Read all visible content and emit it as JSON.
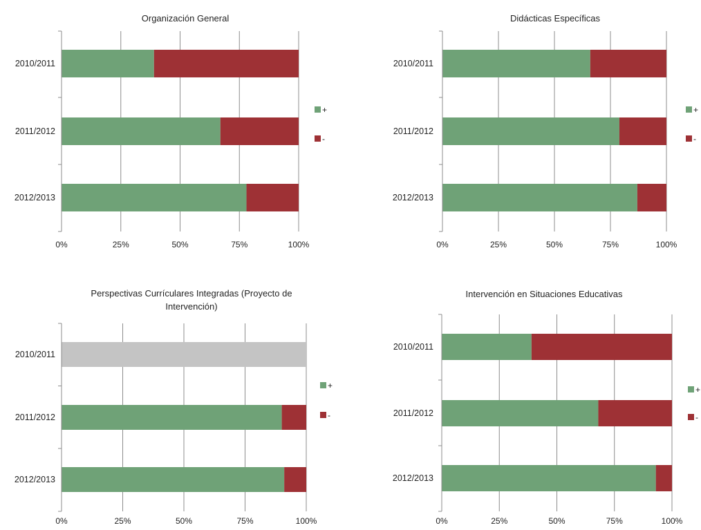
{
  "colors": {
    "plus": "#6FA277",
    "minus": "#9E3135",
    "nodata": "#C4C4C4",
    "grid": "#8C8C8C"
  },
  "x_ticks": [
    "0%",
    "25%",
    "50%",
    "75%",
    "100%"
  ],
  "chart_data": [
    {
      "type": "bar",
      "orientation": "horizontal",
      "stacked": "percent",
      "title_lines": [
        "Organización General"
      ],
      "categories": [
        "2010/2011",
        "2011/2012",
        "2012/2013"
      ],
      "series": [
        {
          "name": "+",
          "values": [
            39,
            67,
            78
          ]
        },
        {
          "name": "-",
          "values": [
            61,
            33,
            22
          ]
        }
      ],
      "xlim": [
        0,
        100
      ],
      "grid": true,
      "legend": "right"
    },
    {
      "type": "bar",
      "orientation": "horizontal",
      "stacked": "percent",
      "title_lines": [
        "Didácticas  Específicas"
      ],
      "categories": [
        "2010/2011",
        "2011/2012",
        "2012/2013"
      ],
      "series": [
        {
          "name": "+",
          "values": [
            66,
            79,
            87
          ]
        },
        {
          "name": "-",
          "values": [
            34,
            21,
            13
          ]
        }
      ],
      "xlim": [
        0,
        100
      ],
      "grid": true,
      "legend": "right"
    },
    {
      "type": "bar",
      "orientation": "horizontal",
      "stacked": "percent",
      "title_lines": [
        "Perspectivas Currículares Integradas (Proyecto de",
        "Intervención)"
      ],
      "categories": [
        "2010/2011",
        "2011/2012",
        "2012/2013"
      ],
      "series": [
        {
          "name": "+",
          "values": [
            null,
            90,
            91
          ]
        },
        {
          "name": "-",
          "values": [
            null,
            10,
            9
          ]
        }
      ],
      "no_data_rows": [
        "2010/2011"
      ],
      "xlim": [
        0,
        100
      ],
      "grid": true,
      "legend": "right"
    },
    {
      "type": "bar",
      "orientation": "horizontal",
      "stacked": "percent",
      "title_lines": [
        "Intervención en Situaciones  Educativas"
      ],
      "categories": [
        "2010/2011",
        "2011/2012",
        "2012/2013"
      ],
      "series": [
        {
          "name": "+",
          "values": [
            39,
            68,
            93
          ]
        },
        {
          "name": "-",
          "values": [
            61,
            32,
            7
          ]
        }
      ],
      "xlim": [
        0,
        100
      ],
      "grid": true,
      "legend": "right"
    }
  ]
}
